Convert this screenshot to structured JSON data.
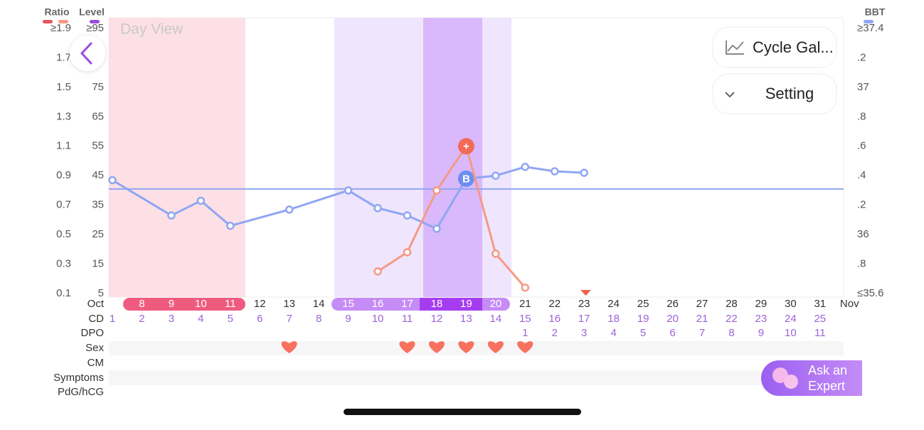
{
  "chart_data": {
    "type": "line",
    "view_label": "Day View",
    "level_title": "Level",
    "ylim": [
      0.1,
      1.9
    ],
    "yticks": [
      0.1,
      0.3,
      0.5,
      0.7,
      0.9,
      1.1,
      1.3,
      1.5,
      1.7,
      {
        "value": 1.9,
        "label": "≥1.9"
      }
    ],
    "level_lim": [
      5,
      95
    ],
    "level_ticks": [
      5,
      15,
      25,
      35,
      45,
      55,
      65,
      75,
      85,
      {
        "value": 95,
        "label": "≥95"
      }
    ],
    "y2lim": [
      35.6,
      37.4
    ],
    "y2ticks": [
      {
        "value": 35.6,
        "label": "≤35.6"
      },
      {
        "value": 35.8,
        "label": ".8"
      },
      36,
      {
        "value": 36.2,
        "label": ".2"
      },
      {
        "value": 36.4,
        "label": ".4"
      },
      {
        "value": 36.6,
        "label": ".6"
      },
      {
        "value": 36.8,
        "label": ".8"
      },
      37,
      {
        "value": 37.2,
        "label": ".2"
      },
      {
        "value": 37.4,
        "label": "≥37.4"
      }
    ],
    "categories": [
      null,
      8,
      9,
      10,
      11,
      12,
      13,
      14,
      15,
      16,
      17,
      18,
      19,
      20,
      21,
      22,
      23,
      24,
      25,
      26,
      27,
      28,
      29,
      30,
      31,
      "Nov"
    ],
    "coverline": 36.31,
    "series": [
      {
        "name": "BBT",
        "color": "#8fa6f2",
        "axis": "y2",
        "x": [
          7,
          9,
          10,
          11,
          13,
          15,
          16,
          17,
          18,
          19,
          20,
          21,
          22,
          23
        ],
        "values": [
          36.37,
          36.13,
          36.23,
          36.06,
          36.17,
          36.3,
          36.18,
          36.13,
          36.04,
          36.38,
          36.4,
          36.46,
          36.43,
          36.42
        ],
        "point_label": {
          "x": 19,
          "label": "B"
        }
      },
      {
        "name": "Ratio",
        "color": "#f59a85",
        "x": [
          16,
          17,
          18,
          19,
          20,
          21
        ],
        "values": [
          0.25,
          0.38,
          0.8,
          1.1,
          0.37,
          0.14
        ],
        "point_label": {
          "x": 19,
          "label": "+"
        }
      }
    ]
  },
  "rows": {
    "labels": [
      "Oct",
      "CD",
      "DPO",
      "Sex",
      "CM",
      "Symptoms",
      "PdG/hCG"
    ],
    "cd": [
      1,
      2,
      3,
      4,
      5,
      6,
      7,
      8,
      9,
      10,
      11,
      12,
      13,
      14,
      15,
      16,
      17,
      18,
      19,
      20,
      21,
      22,
      23,
      24,
      25,
      null
    ],
    "dpo": [
      null,
      null,
      null,
      null,
      null,
      null,
      null,
      null,
      null,
      null,
      null,
      null,
      null,
      null,
      1,
      2,
      3,
      4,
      5,
      6,
      7,
      8,
      9,
      10,
      11,
      null
    ],
    "sex_days": [
      13,
      17,
      18,
      19,
      20,
      21
    ]
  },
  "buttons": {
    "cycle_gallery": "Cycle Gal...",
    "setting": "Setting",
    "ask_expert": [
      "Ask an",
      "Expert"
    ]
  }
}
